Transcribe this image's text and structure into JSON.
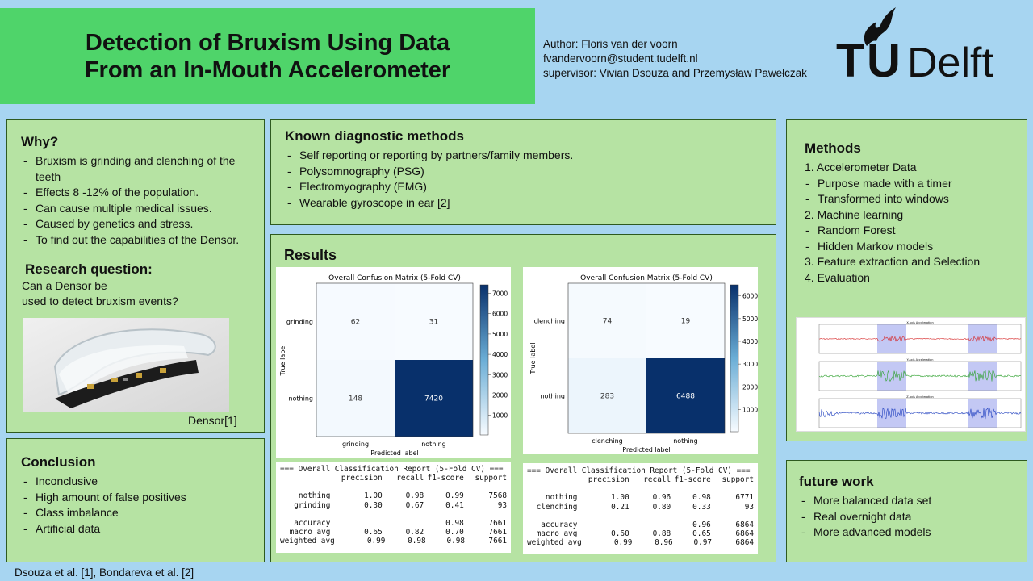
{
  "title": {
    "line1": "Detection of Bruxism Using Data",
    "line2": "From an In-Mouth Accelerometer"
  },
  "author": {
    "name": "Author: Floris van der voorn",
    "email": "fvandervoorn@student.tudelft.nl",
    "supervisor": "supervisor: Vivian Dsouza and Przemysław Pawełczak"
  },
  "logo": {
    "text_t": "T",
    "text_u": "U",
    "text_rest": "Delft"
  },
  "why": {
    "heading": "Why?",
    "items": [
      "Bruxism is grinding and clenching of the teeth",
      "Effects 8 -12% of the population.",
      "Can cause multiple medical issues.",
      "Caused by genetics and stress.",
      "To find out the capabilities of the Densor."
    ],
    "rq_heading": "Research question:",
    "rq_line1": "Can a Densor be",
    "rq_line2": "used to detect bruxism events?",
    "photo_caption": "Densor[1]"
  },
  "conclusion": {
    "heading": "Conclusion",
    "items": [
      "Inconclusive",
      "High amount of false positives",
      "Class imbalance",
      "Artificial data"
    ]
  },
  "known": {
    "heading": "Known diagnostic methods",
    "items": [
      "Self reporting or reporting by partners/family members.",
      "Polysomnography (PSG)",
      "Electromyography (EMG)",
      "Wearable gyroscope in ear [2]"
    ]
  },
  "results": {
    "heading": "Results",
    "reports": [
      {
        "title": "=== Overall Classification Report (5-Fold CV) ===",
        "header": [
          "",
          "precision",
          "recall",
          "f1-score",
          "support"
        ],
        "rows": [
          [
            "nothing",
            "1.00",
            "0.98",
            "0.99",
            "7568"
          ],
          [
            "grinding",
            "0.30",
            "0.67",
            "0.41",
            "93"
          ],
          [
            "",
            "",
            "",
            "",
            ""
          ],
          [
            "accuracy",
            "",
            "",
            "0.98",
            "7661"
          ],
          [
            "macro avg",
            "0.65",
            "0.82",
            "0.70",
            "7661"
          ],
          [
            "weighted avg",
            "0.99",
            "0.98",
            "0.98",
            "7661"
          ]
        ]
      },
      {
        "title": "=== Overall Classification Report (5-Fold CV) ===",
        "header": [
          "",
          "precision",
          "recall",
          "f1-score",
          "support"
        ],
        "rows": [
          [
            "nothing",
            "1.00",
            "0.96",
            "0.98",
            "6771"
          ],
          [
            "clenching",
            "0.21",
            "0.80",
            "0.33",
            "93"
          ],
          [
            "",
            "",
            "",
            "",
            ""
          ],
          [
            "accuracy",
            "",
            "",
            "0.96",
            "6864"
          ],
          [
            "macro avg",
            "0.60",
            "0.88",
            "0.65",
            "6864"
          ],
          [
            "weighted avg",
            "0.99",
            "0.96",
            "0.97",
            "6864"
          ]
        ]
      }
    ]
  },
  "chart_data": [
    {
      "type": "heatmap",
      "title": "Overall Confusion Matrix (5-Fold CV)",
      "xlabel": "Predicted label",
      "ylabel": "True label",
      "x_categories": [
        "grinding",
        "nothing"
      ],
      "y_categories": [
        "grinding",
        "nothing"
      ],
      "values": [
        [
          62,
          31
        ],
        [
          148,
          7420
        ]
      ],
      "colorbar_ticks": [
        1000,
        2000,
        3000,
        4000,
        5000,
        6000,
        7000
      ],
      "colorbar_range": [
        31,
        7420
      ],
      "colormap": "Blues"
    },
    {
      "type": "heatmap",
      "title": "Overall Confusion Matrix (5-Fold CV)",
      "xlabel": "Predicted label",
      "ylabel": "True label",
      "x_categories": [
        "clenching",
        "nothing"
      ],
      "y_categories": [
        "clenching",
        "nothing"
      ],
      "values": [
        [
          74,
          19
        ],
        [
          283,
          6488
        ]
      ],
      "colorbar_ticks": [
        1000,
        2000,
        3000,
        4000,
        5000,
        6000
      ],
      "colorbar_range": [
        19,
        6488
      ],
      "colormap": "Blues"
    }
  ],
  "methods": {
    "heading": "Methods",
    "lines": [
      {
        "type": "num",
        "text": "1. Accelerometer Data"
      },
      {
        "type": "bullet",
        "text": "Purpose made with a timer"
      },
      {
        "type": "bullet",
        "text": "Transformed into windows"
      },
      {
        "type": "num",
        "text": "2. Machine learning"
      },
      {
        "type": "bullet",
        "text": "Random Forest"
      },
      {
        "type": "bullet",
        "text": "Hidden Markov models"
      },
      {
        "type": "num",
        "text": "3. Feature extraction and Selection"
      },
      {
        "type": "num",
        "text": "4. Evaluation"
      }
    ],
    "accel_panels": [
      "X-axis Acceleration",
      "Y-axis Acceleration",
      "Z-axis Acceleration"
    ]
  },
  "future": {
    "heading": "future work",
    "items": [
      "More balanced data set",
      "Real overnight data",
      "More advanced models"
    ]
  },
  "footer": "Dsouza et al. [1], Bondareva et al. [2]",
  "colors": {
    "background": "#a7d5f1",
    "panel": "#b6e3a3",
    "title_box": "#4fd46a",
    "heat_dark": "#08306b",
    "heat_light": "#f7fbff"
  }
}
